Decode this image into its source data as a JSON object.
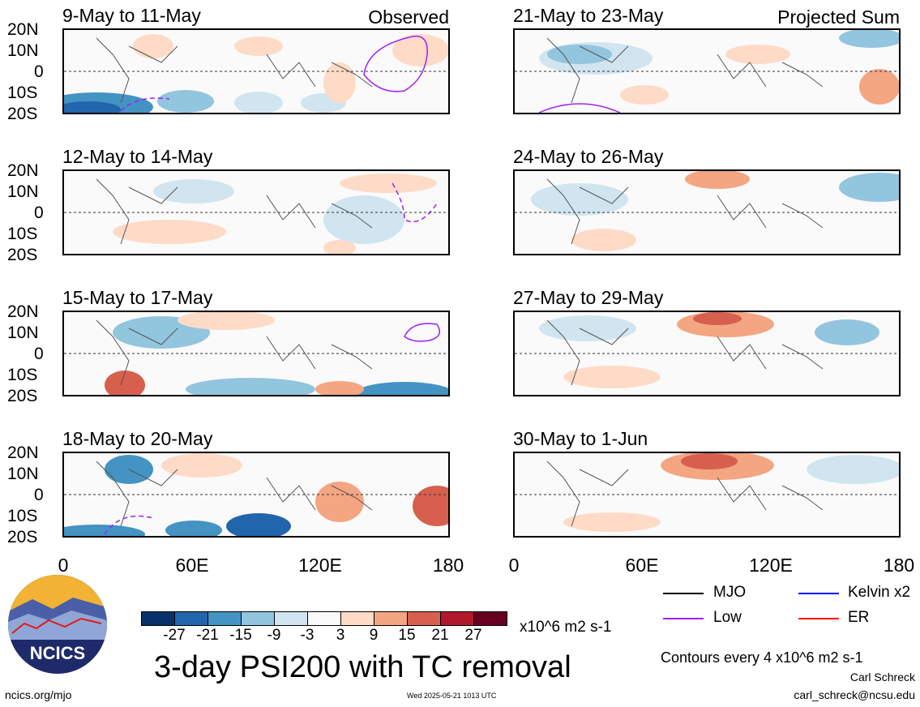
{
  "panels": [
    {
      "title": "9-May to 11-May",
      "tag": "Observed"
    },
    {
      "title": "21-May to 23-May",
      "tag": "Projected Sum"
    },
    {
      "title": "12-May to 14-May",
      "tag": ""
    },
    {
      "title": "24-May to 26-May",
      "tag": ""
    },
    {
      "title": "15-May to 17-May",
      "tag": ""
    },
    {
      "title": "27-May to 29-May",
      "tag": ""
    },
    {
      "title": "18-May to 20-May",
      "tag": ""
    },
    {
      "title": "30-May to 1-Jun",
      "tag": ""
    }
  ],
  "lat_labels": [
    "20N",
    "10N",
    "0",
    "10S",
    "20S"
  ],
  "lon_labels": [
    "0",
    "60E",
    "120E",
    "180"
  ],
  "colorbar": {
    "labels": [
      "-27",
      "-21",
      "-15",
      "-9",
      "-3",
      "3",
      "9",
      "15",
      "21",
      "27"
    ],
    "colors": [
      "#08306b",
      "#2166ac",
      "#4393c3",
      "#92c5de",
      "#d1e5f0",
      "#fafafa",
      "#fddbc7",
      "#f4a582",
      "#d6604d",
      "#b2182b",
      "#67001f"
    ],
    "units": "x10^6 m2 s-1"
  },
  "title": "3-day PSI200 with TC removal",
  "legend": [
    {
      "label": "MJO",
      "color": "#000000"
    },
    {
      "label": "Kelvin x2",
      "color": "#0000ff"
    },
    {
      "label": "Low",
      "color": "#a020f0"
    },
    {
      "label": "ER",
      "color": "#ff0000"
    }
  ],
  "contour_note": "Contours every 4 x10^6 m2 s-1",
  "author": "Carl Schreck",
  "email": "carl_schreck@ncsu.edu",
  "website": "ncics.org/mjo",
  "timestamp": "Wed 2025-05-21 1013 UTC",
  "logo_text": "NCICS"
}
